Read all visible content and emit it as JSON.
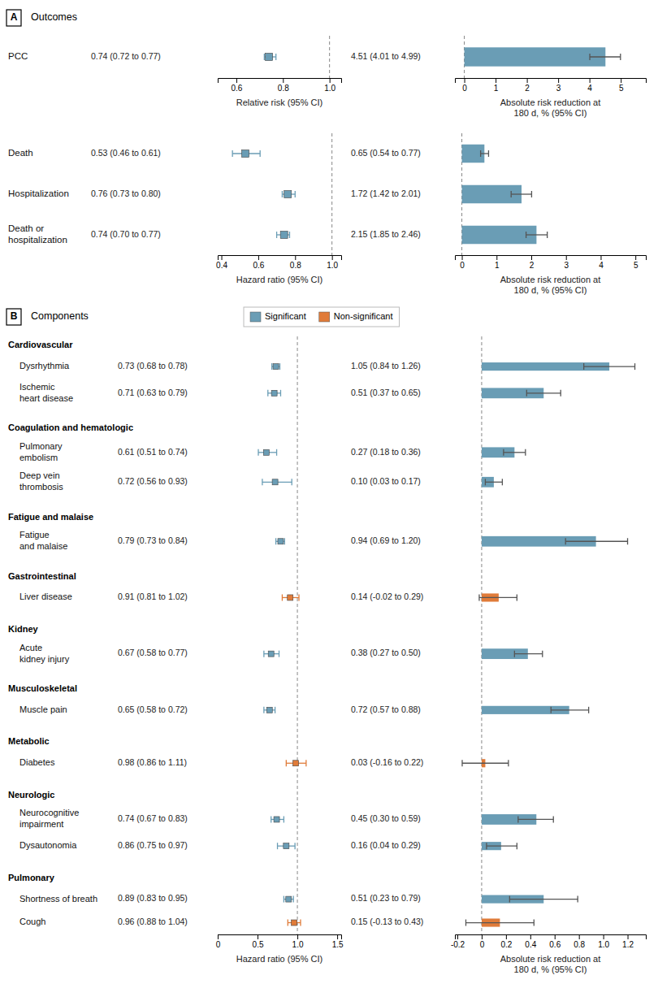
{
  "chart_data": [
    {
      "type": "forest",
      "panel_label": "A",
      "title": "Outcomes",
      "categories": [
        "PCC"
      ],
      "values": [
        0.74
      ],
      "ci_low": [
        0.72
      ],
      "ci_high": [
        0.77
      ],
      "value_labels": [
        "0.74 (0.72 to 0.77)"
      ],
      "data_labels": true,
      "color": "#6a9db5",
      "reference_line": 1,
      "xlabel": "Relative risk (95% CI)",
      "xlim": [
        0.52,
        1.05
      ],
      "xticks": [
        0.6,
        0.8,
        {
          "value": 1,
          "label": "1.0"
        }
      ]
    },
    {
      "type": "bar",
      "orientation": "horizontal",
      "values": [
        4.51
      ],
      "ci_low": [
        4.01
      ],
      "ci_high": [
        4.99
      ],
      "value_labels": [
        "4.51 (4.01 to 4.99)"
      ],
      "data_labels": true,
      "color": "#6a9db5",
      "reference_line": 0,
      "xlabel": [
        "Absolute risk reduction at",
        "180 d, % (95% CI)"
      ],
      "xlim": [
        -0.3,
        5.8
      ],
      "xticks": [
        0,
        1,
        2,
        3,
        4,
        5
      ]
    },
    {
      "type": "forest",
      "categories": [
        "Death",
        "Hospitalization",
        [
          "Death or",
          "hospitalization"
        ]
      ],
      "values": [
        0.53,
        0.76,
        0.74
      ],
      "ci_low": [
        0.46,
        0.73,
        0.7
      ],
      "ci_high": [
        0.61,
        0.8,
        0.77
      ],
      "value_labels": [
        "0.53 (0.46 to 0.61)",
        "0.76 (0.73 to 0.80)",
        "0.74 (0.70 to 0.77)"
      ],
      "data_labels": true,
      "color": "#6a9db5",
      "reference_line": 1,
      "xlabel": "Hazard ratio (95% CI)",
      "xlim": [
        0.38,
        1.05
      ],
      "xticks": [
        0.4,
        0.6,
        0.8,
        {
          "value": 1,
          "label": "1.0"
        }
      ]
    },
    {
      "type": "bar",
      "orientation": "horizontal",
      "values": [
        0.65,
        1.72,
        2.15
      ],
      "ci_low": [
        0.54,
        1.42,
        1.85
      ],
      "ci_high": [
        0.77,
        2.01,
        2.46
      ],
      "value_labels": [
        "0.65 (0.54 to 0.77)",
        "1.72 (1.42 to 2.01)",
        "2.15 (1.85 to 2.46)"
      ],
      "data_labels": true,
      "color": "#6a9db5",
      "reference_line": 0,
      "xlabel": [
        "Absolute risk reduction at",
        "180 d, % (95% CI)"
      ],
      "xlim": [
        -0.2,
        5.3
      ],
      "xticks": [
        0,
        1,
        2,
        3,
        4,
        5
      ]
    },
    {
      "type": "forest",
      "panel_label": "B",
      "title": "Components",
      "legend": "top",
      "series": [
        {
          "name": "Significant",
          "color": "#6a9db5"
        },
        {
          "name": "Non-significant",
          "color": "#e07b39"
        }
      ],
      "data_labels": true,
      "reference_line": 1,
      "xlabel": "Hazard ratio (95% CI)",
      "xlim": [
        0,
        1.55
      ],
      "xticks": [
        0,
        0.5,
        {
          "value": 1,
          "label": "1.0"
        },
        1.5
      ],
      "groups": [
        {
          "name": "Cardiovascular",
          "categories": [
            "Dysrhythmia",
            [
              "Ischemic",
              "heart disease"
            ]
          ],
          "values": [
            0.73,
            0.71
          ],
          "ci_low": [
            0.68,
            0.63
          ],
          "ci_high": [
            0.78,
            0.79
          ],
          "value_labels": [
            "0.73 (0.68 to 0.78)",
            "0.71 (0.63 to 0.79)"
          ],
          "colors": [
            "#6a9db5",
            "#6a9db5"
          ]
        },
        {
          "name": "Coagulation and hematologic",
          "categories": [
            [
              "Pulmonary",
              "embolism"
            ],
            [
              "Deep vein",
              "thrombosis"
            ]
          ],
          "values": [
            0.61,
            0.72
          ],
          "ci_low": [
            0.51,
            0.56
          ],
          "ci_high": [
            0.74,
            0.93
          ],
          "value_labels": [
            "0.61 (0.51 to 0.74)",
            "0.72 (0.56 to 0.93)"
          ],
          "colors": [
            "#6a9db5",
            "#6a9db5"
          ]
        },
        {
          "name": "Fatigue and malaise",
          "categories": [
            [
              "Fatigue",
              "and malaise"
            ]
          ],
          "values": [
            0.79
          ],
          "ci_low": [
            0.73
          ],
          "ci_high": [
            0.84
          ],
          "value_labels": [
            "0.79 (0.73 to 0.84)"
          ],
          "colors": [
            "#6a9db5"
          ]
        },
        {
          "name": "Gastrointestinal",
          "categories": [
            "Liver disease"
          ],
          "values": [
            0.91
          ],
          "ci_low": [
            0.81
          ],
          "ci_high": [
            1.02
          ],
          "value_labels": [
            "0.91 (0.81 to 1.02)"
          ],
          "colors": [
            "#e07b39"
          ]
        },
        {
          "name": "Kidney",
          "categories": [
            [
              "Acute",
              "kidney injury"
            ]
          ],
          "values": [
            0.67
          ],
          "ci_low": [
            0.58
          ],
          "ci_high": [
            0.77
          ],
          "value_labels": [
            "0.67 (0.58 to 0.77)"
          ],
          "colors": [
            "#6a9db5"
          ]
        },
        {
          "name": "Musculoskeletal",
          "categories": [
            "Muscle pain"
          ],
          "values": [
            0.65
          ],
          "ci_low": [
            0.58
          ],
          "ci_high": [
            0.72
          ],
          "value_labels": [
            "0.65 (0.58 to 0.72)"
          ],
          "colors": [
            "#6a9db5"
          ]
        },
        {
          "name": "Metabolic",
          "categories": [
            "Diabetes"
          ],
          "values": [
            0.98
          ],
          "ci_low": [
            0.86
          ],
          "ci_high": [
            1.11
          ],
          "value_labels": [
            "0.98 (0.86 to 1.11)"
          ],
          "colors": [
            "#e07b39"
          ]
        },
        {
          "name": "Neurologic",
          "categories": [
            [
              "Neurocognitive",
              "impairment"
            ],
            "Dysautonomia"
          ],
          "values": [
            0.74,
            0.86
          ],
          "ci_low": [
            0.67,
            0.75
          ],
          "ci_high": [
            0.83,
            0.97
          ],
          "value_labels": [
            "0.74 (0.67 to 0.83)",
            "0.86 (0.75 to 0.97)"
          ],
          "colors": [
            "#6a9db5",
            "#6a9db5"
          ]
        },
        {
          "name": "Pulmonary",
          "categories": [
            "Shortness of breath",
            "Cough"
          ],
          "values": [
            0.89,
            0.96
          ],
          "ci_low": [
            0.83,
            0.88
          ],
          "ci_high": [
            0.95,
            1.04
          ],
          "value_labels": [
            "0.89 (0.83 to 0.95)",
            "0.96 (0.88 to 1.04)"
          ],
          "colors": [
            "#6a9db5",
            "#e07b39"
          ]
        }
      ]
    },
    {
      "type": "bar",
      "orientation": "horizontal",
      "data_labels": true,
      "reference_line": 0,
      "xlabel": [
        "Absolute risk reduction at",
        "180 d, % (95% CI)"
      ],
      "xlim": [
        -0.22,
        1.35
      ],
      "xticks": [
        -0.2,
        0,
        0.2,
        0.4,
        0.6,
        0.8,
        {
          "value": 1,
          "label": "1.0"
        },
        1.2
      ],
      "groups": [
        {
          "values": [
            1.05,
            0.51
          ],
          "ci_low": [
            0.84,
            0.37
          ],
          "ci_high": [
            1.26,
            0.65
          ],
          "value_labels": [
            "1.05 (0.84 to 1.26)",
            "0.51 (0.37 to 0.65)"
          ],
          "colors": [
            "#6a9db5",
            "#6a9db5"
          ]
        },
        {
          "values": [
            0.27,
            0.1
          ],
          "ci_low": [
            0.18,
            0.03
          ],
          "ci_high": [
            0.36,
            0.17
          ],
          "value_labels": [
            "0.27 (0.18 to 0.36)",
            "0.10 (0.03 to 0.17)"
          ],
          "colors": [
            "#6a9db5",
            "#6a9db5"
          ]
        },
        {
          "values": [
            0.94
          ],
          "ci_low": [
            0.69
          ],
          "ci_high": [
            1.2
          ],
          "value_labels": [
            "0.94 (0.69 to 1.20)"
          ],
          "colors": [
            "#6a9db5"
          ]
        },
        {
          "values": [
            0.14
          ],
          "ci_low": [
            -0.02
          ],
          "ci_high": [
            0.29
          ],
          "value_labels": [
            "0.14 (-0.02 to 0.29)"
          ],
          "colors": [
            "#e07b39"
          ]
        },
        {
          "values": [
            0.38
          ],
          "ci_low": [
            0.27
          ],
          "ci_high": [
            0.5
          ],
          "value_labels": [
            "0.38 (0.27 to 0.50)"
          ],
          "colors": [
            "#6a9db5"
          ]
        },
        {
          "values": [
            0.72
          ],
          "ci_low": [
            0.57
          ],
          "ci_high": [
            0.88
          ],
          "value_labels": [
            "0.72 (0.57 to 0.88)"
          ],
          "colors": [
            "#6a9db5"
          ]
        },
        {
          "values": [
            0.03
          ],
          "ci_low": [
            -0.16
          ],
          "ci_high": [
            0.22
          ],
          "value_labels": [
            "0.03 (-0.16 to 0.22)"
          ],
          "colors": [
            "#e07b39"
          ]
        },
        {
          "values": [
            0.45,
            0.16
          ],
          "ci_low": [
            0.3,
            0.04
          ],
          "ci_high": [
            0.59,
            0.29
          ],
          "value_labels": [
            "0.45 (0.30 to 0.59)",
            "0.16 (0.04 to 0.29)"
          ],
          "colors": [
            "#6a9db5",
            "#6a9db5"
          ]
        },
        {
          "values": [
            0.51,
            0.15
          ],
          "ci_low": [
            0.23,
            -0.13
          ],
          "ci_high": [
            0.79,
            0.43
          ],
          "value_labels": [
            "0.51 (0.23 to 0.79)",
            "0.15 (-0.13 to 0.43)"
          ],
          "colors": [
            "#6a9db5",
            "#e07b39"
          ]
        }
      ]
    }
  ]
}
